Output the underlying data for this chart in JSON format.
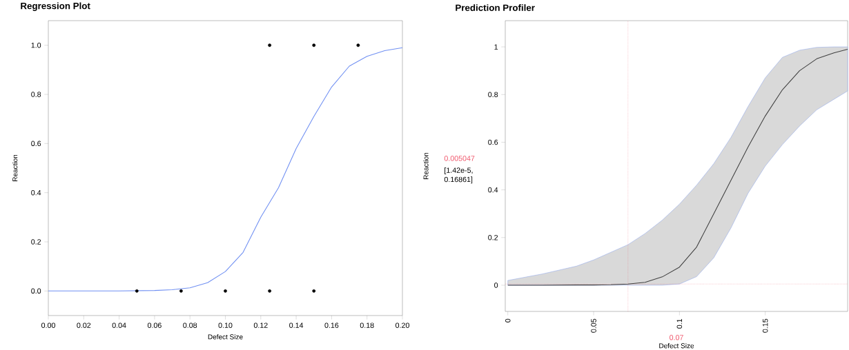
{
  "chart_data": [
    {
      "type": "scatter",
      "title": "Regression Plot",
      "xlabel": "Defect Size",
      "ylabel": "Reaction",
      "xlim": [
        0,
        0.2
      ],
      "ylim": [
        -0.1,
        1.1
      ],
      "xticks": [
        {
          "value": 0,
          "label": "0.00"
        },
        {
          "value": 0.02,
          "label": "0.02"
        },
        {
          "value": 0.04,
          "label": "0.04"
        },
        {
          "value": 0.06,
          "label": "0.06"
        },
        {
          "value": 0.08,
          "label": "0.08"
        },
        {
          "value": 0.1,
          "label": "0.10"
        },
        {
          "value": 0.12,
          "label": "0.12"
        },
        {
          "value": 0.14,
          "label": "0.14"
        },
        {
          "value": 0.16,
          "label": "0.16"
        },
        {
          "value": 0.18,
          "label": "0.18"
        },
        {
          "value": 0.2,
          "label": "0.20"
        }
      ],
      "yticks": [
        {
          "value": 0,
          "label": "0.0"
        },
        {
          "value": 0.2,
          "label": "0.2"
        },
        {
          "value": 0.4,
          "label": "0.4"
        },
        {
          "value": 0.6,
          "label": "0.6"
        },
        {
          "value": 0.8,
          "label": "0.8"
        },
        {
          "value": 1,
          "label": "1.0"
        }
      ],
      "series": [
        {
          "marker": "circle",
          "color": "#000000",
          "x": [
            0.05,
            0.075,
            0.1,
            0.125,
            0.15,
            0.125,
            0.15,
            0.175
          ],
          "values": [
            0,
            0,
            0,
            0,
            0,
            1,
            1,
            1
          ]
        },
        {
          "type": "line",
          "marker": "none",
          "color": "#6f8ff2",
          "x": [
            0,
            0.04,
            0.06,
            0.07,
            0.08,
            0.09,
            0.1,
            0.11,
            0.12,
            0.13,
            0.14,
            0.15,
            0.16,
            0.17,
            0.18,
            0.19,
            0.2
          ],
          "values": [
            0,
            0,
            0.002,
            0.005,
            0.013,
            0.034,
            0.079,
            0.157,
            0.3,
            0.42,
            0.58,
            0.71,
            0.83,
            0.915,
            0.955,
            0.978,
            0.99
          ]
        }
      ]
    },
    {
      "type": "line",
      "title": "Prediction Profiler",
      "xlabel": "Defect Size",
      "ylabel": "Reaction",
      "xlim": [
        -0.0015,
        0.198
      ],
      "ylim": [
        -0.11,
        1.11
      ],
      "xticks": [
        0,
        0.05,
        0.1,
        0.15
      ],
      "yticks": [
        0,
        0.2,
        0.4,
        0.6,
        0.8,
        1
      ],
      "series": [
        {
          "marker": "none",
          "color": "#404040",
          "x": [
            0,
            0.02,
            0.04,
            0.05,
            0.06,
            0.07,
            0.08,
            0.09,
            0.1,
            0.11,
            0.12,
            0.13,
            0.14,
            0.15,
            0.16,
            0.17,
            0.18,
            0.19,
            0.198
          ],
          "values": [
            0,
            0,
            0.001,
            0.001,
            0.002,
            0.005,
            0.012,
            0.035,
            0.076,
            0.16,
            0.3,
            0.44,
            0.58,
            0.71,
            0.82,
            0.9,
            0.95,
            0.975,
            0.99
          ],
          "lower": [
            0,
            0,
            0,
            0,
            0,
            0,
            0,
            0,
            0.005,
            0.036,
            0.115,
            0.24,
            0.386,
            0.5,
            0.59,
            0.668,
            0.736,
            0.78,
            0.815
          ],
          "upper": [
            0.02,
            0.047,
            0.08,
            0.106,
            0.138,
            0.17,
            0.217,
            0.273,
            0.34,
            0.42,
            0.51,
            0.62,
            0.75,
            0.87,
            0.956,
            0.986,
            0.998,
            1.0,
            1.0
          ]
        }
      ],
      "ref_lines": [
        {
          "axis": "x",
          "value": 0.07,
          "label": "0.07",
          "color": "#f05a6e",
          "line_style": "dotted"
        },
        {
          "axis": "y",
          "value": 0.005047,
          "label": "0.005047",
          "color": "#f05a6e",
          "line_style": "dotted"
        }
      ],
      "annotations": [
        "[1.42e-5, 0.16861]"
      ]
    }
  ]
}
